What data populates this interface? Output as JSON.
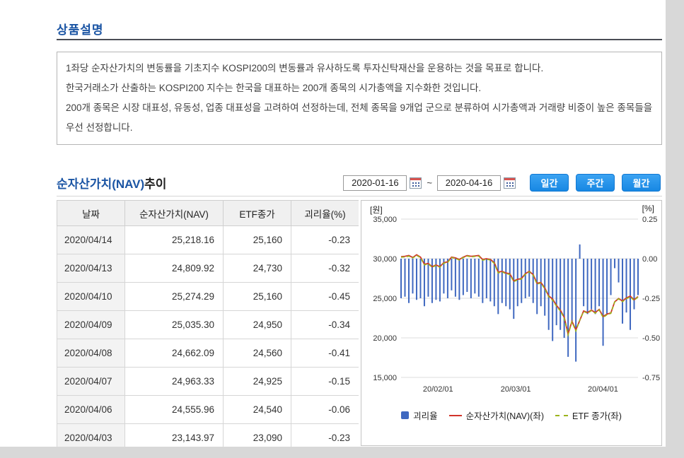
{
  "product_section": {
    "title": "상품설명",
    "paragraphs": [
      "1좌당 순자산가치의 변동률을 기초지수 KOSPI200의 변동률과 유사하도록 투자신탁재산을 운용하는 것을 목표로 합니다.",
      "한국거래소가 산출하는 KOSPI200 지수는 한국을 대표하는 200개 종목의 시가총액을 지수화한 것입니다.",
      "200개 종목은 시장 대표성, 유동성, 업종 대표성을 고려하여 선정하는데, 전체 종목을 9개업 군으로 분류하여 시가총액과 거래량 비중이 높은 종목들을 우선 선정합니다."
    ]
  },
  "nav_section": {
    "title_main": "순자산가치(NAV)",
    "title_suffix": "추이",
    "date_from": "2020-01-16",
    "date_to": "2020-04-16",
    "range_separator": "~",
    "buttons": [
      "일간",
      "주간",
      "월간"
    ]
  },
  "table": {
    "columns": [
      "날짜",
      "순자산가치(NAV)",
      "ETF종가",
      "괴리율(%)"
    ],
    "rows": [
      [
        "2020/04/14",
        "25,218.16",
        "25,160",
        "-0.23"
      ],
      [
        "2020/04/13",
        "24,809.92",
        "24,730",
        "-0.32"
      ],
      [
        "2020/04/10",
        "25,274.29",
        "25,160",
        "-0.45"
      ],
      [
        "2020/04/09",
        "25,035.30",
        "24,950",
        "-0.34"
      ],
      [
        "2020/04/08",
        "24,662.09",
        "24,560",
        "-0.41"
      ],
      [
        "2020/04/07",
        "24,963.33",
        "24,925",
        "-0.15"
      ],
      [
        "2020/04/06",
        "24,555.96",
        "24,540",
        "-0.06"
      ],
      [
        "2020/04/03",
        "23,143.97",
        "23,090",
        "-0.23"
      ]
    ]
  },
  "chart_data": {
    "type": "composite",
    "left_axis": {
      "unit": "[원]",
      "min": 15000,
      "max": 35000,
      "ticks": [
        35000,
        30000,
        25000,
        20000,
        15000
      ]
    },
    "right_axis": {
      "unit": "[%]",
      "min": -0.75,
      "max": 0.25,
      "ticks": [
        0.25,
        0.0,
        -0.25,
        -0.5,
        -0.75
      ]
    },
    "x_ticks": [
      {
        "label": "20/02/01",
        "pos": 0.156
      },
      {
        "label": "20/03/01",
        "pos": 0.484
      },
      {
        "label": "20/04/01",
        "pos": 0.852
      }
    ],
    "dates": [
      "01/16",
      "01/17",
      "01/20",
      "01/21",
      "01/22",
      "01/23",
      "01/28",
      "01/29",
      "01/30",
      "01/31",
      "02/03",
      "02/04",
      "02/05",
      "02/06",
      "02/07",
      "02/10",
      "02/11",
      "02/12",
      "02/13",
      "02/14",
      "02/17",
      "02/18",
      "02/19",
      "02/20",
      "02/21",
      "02/24",
      "02/25",
      "02/26",
      "02/27",
      "02/28",
      "03/02",
      "03/03",
      "03/04",
      "03/05",
      "03/06",
      "03/09",
      "03/10",
      "03/11",
      "03/12",
      "03/13",
      "03/16",
      "03/17",
      "03/18",
      "03/19",
      "03/20",
      "03/23",
      "03/24",
      "03/25",
      "03/26",
      "03/27",
      "03/30",
      "03/31",
      "04/01",
      "04/02",
      "04/03",
      "04/06",
      "04/07",
      "04/08",
      "04/09",
      "04/10",
      "04/13",
      "04/14"
    ],
    "series": [
      {
        "name": "괴리율",
        "type": "bar",
        "axis": "right",
        "color": "#3f68c0",
        "values": [
          -0.25,
          -0.24,
          -0.28,
          -0.22,
          -0.26,
          -0.25,
          -0.3,
          -0.24,
          -0.28,
          -0.26,
          -0.27,
          -0.22,
          -0.25,
          -0.2,
          -0.24,
          -0.26,
          -0.23,
          -0.21,
          -0.25,
          -0.22,
          -0.24,
          -0.28,
          -0.25,
          -0.27,
          -0.3,
          -0.35,
          -0.28,
          -0.3,
          -0.32,
          -0.38,
          -0.3,
          -0.28,
          -0.25,
          -0.24,
          -0.28,
          -0.35,
          -0.3,
          -0.36,
          -0.45,
          -0.52,
          -0.42,
          -0.45,
          -0.5,
          -0.62,
          -0.4,
          -0.65,
          0.09,
          -0.3,
          -0.35,
          -0.32,
          -0.35,
          -0.3,
          -0.55,
          -0.35,
          -0.23,
          -0.06,
          -0.15,
          -0.41,
          -0.34,
          -0.45,
          -0.32,
          -0.23
        ]
      },
      {
        "name": "순자산가치(NAV)(좌)",
        "type": "line",
        "axis": "left",
        "color": "#d2342a",
        "values": [
          30250,
          30300,
          30400,
          30150,
          30500,
          30200,
          29300,
          29400,
          29000,
          29200,
          29000,
          29500,
          29600,
          30200,
          30100,
          29900,
          30200,
          30400,
          30300,
          30350,
          30400,
          29900,
          30000,
          29900,
          29500,
          28300,
          28400,
          28200,
          28100,
          27200,
          27400,
          27500,
          28100,
          28400,
          28000,
          26900,
          27000,
          26300,
          25300,
          24900,
          24100,
          23500,
          22600,
          20500,
          22100,
          21000,
          22200,
          23400,
          23200,
          23500,
          23200,
          23600,
          22700,
          23000,
          23144,
          24556,
          24963,
          24662,
          25035,
          25274,
          24810,
          25218
        ]
      },
      {
        "name": "ETF 종가(좌)",
        "type": "line-dashed",
        "axis": "left",
        "color": "#9cb31c",
        "values": [
          30175,
          30225,
          30315,
          30085,
          30420,
          30125,
          29210,
          29330,
          28920,
          29125,
          28920,
          29435,
          29525,
          30140,
          30030,
          29820,
          30130,
          30335,
          30225,
          30285,
          30325,
          29815,
          29925,
          29820,
          29410,
          28200,
          28320,
          28115,
          28010,
          27095,
          27320,
          27425,
          28030,
          28330,
          27920,
          26805,
          26920,
          26205,
          25185,
          24770,
          24000,
          23395,
          22485,
          20375,
          22010,
          20865,
          22220,
          23330,
          23120,
          23425,
          23120,
          23530,
          22575,
          22920,
          23090,
          24540,
          24925,
          24560,
          24950,
          25160,
          24730,
          25160
        ]
      }
    ],
    "legend": [
      "괴리율",
      "순자산가치(NAV)(좌)",
      "ETF 종가(좌)"
    ]
  }
}
